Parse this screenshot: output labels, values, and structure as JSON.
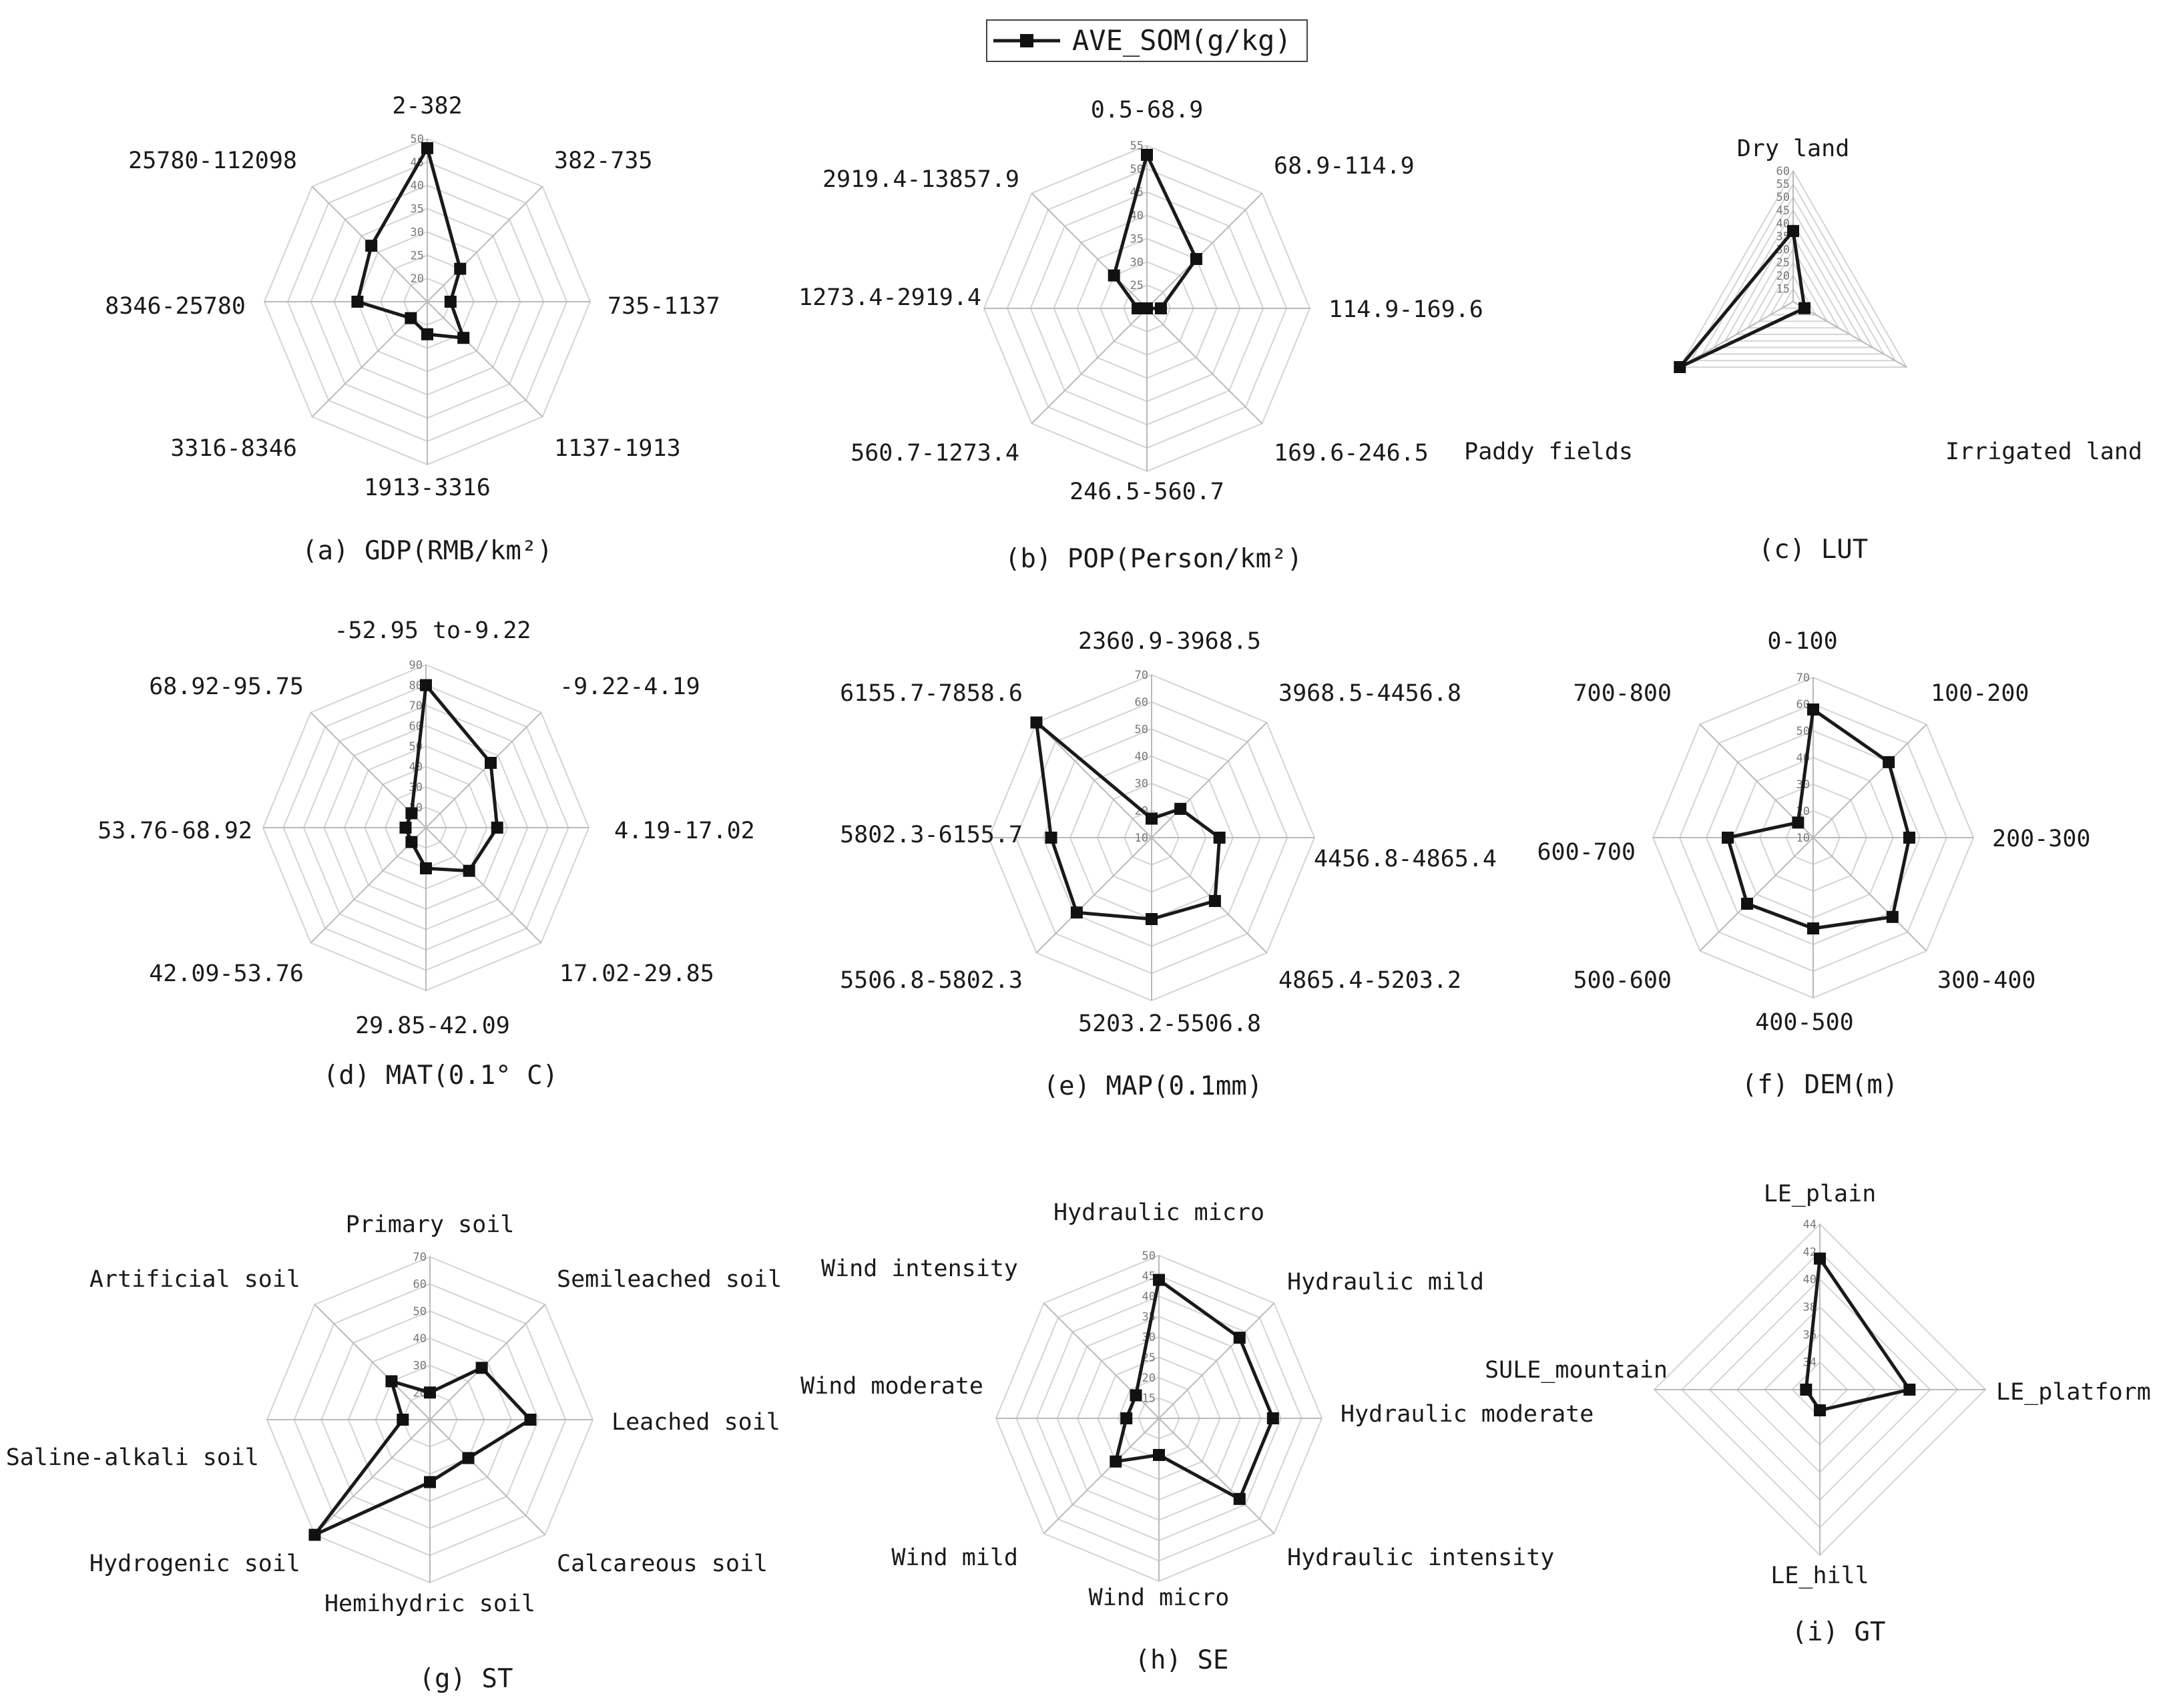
{
  "legend": {
    "label": "AVE_SOM(g/kg)",
    "marker": "black-square-line"
  },
  "colors": {
    "series": "#1a1a1a",
    "grid": "#d4d4d4",
    "spoke": "#b9b9b9"
  },
  "chart_data": [
    {
      "type": "radar",
      "caption": "(a)  GDP(RMB/km²)",
      "categories": [
        "2-382",
        "382-735",
        "735-1137",
        "1137-1913",
        "1913-3316",
        "3316-8346",
        "8346-25780",
        "25780-112098"
      ],
      "values": [
        48,
        25,
        20,
        26,
        22,
        20,
        30,
        32
      ],
      "ticks": [
        20,
        25,
        30,
        35,
        40,
        45,
        50
      ],
      "rlim": [
        15,
        50
      ]
    },
    {
      "type": "radar",
      "caption": "(b)  POP(Person/km²)",
      "categories": [
        "0.5-68.9",
        "68.9-114.9",
        "114.9-169.6",
        "169.6-246.5",
        "246.5-560.7",
        "560.7-1273.4",
        "1273.4-2919.4",
        "2919.4-13857.9"
      ],
      "values": [
        53,
        35,
        23,
        20,
        20,
        20,
        22,
        30
      ],
      "ticks": [
        25,
        30,
        35,
        40,
        45,
        50,
        55
      ],
      "rlim": [
        20,
        55
      ]
    },
    {
      "type": "radar",
      "caption": "(c)  LUT",
      "categories": [
        "Dry land",
        "Irrigated land",
        "Paddy fields"
      ],
      "values": [
        37,
        15,
        60
      ],
      "ticks": [
        15,
        20,
        25,
        30,
        35,
        40,
        45,
        50,
        55,
        60
      ],
      "rlim": [
        10,
        60
      ]
    },
    {
      "type": "radar",
      "caption": "(d)  MAT(0.1° C)",
      "categories": [
        "-52.95 to-9.22",
        "-9.22-4.19",
        "4.19-17.02",
        "17.02-29.85",
        "29.85-42.09",
        "42.09-53.76",
        "53.76-68.92",
        "68.92-95.75"
      ],
      "values": [
        80,
        55,
        45,
        40,
        30,
        20,
        20,
        20
      ],
      "ticks": [
        20,
        30,
        40,
        50,
        60,
        70,
        80,
        90
      ],
      "rlim": [
        10,
        90
      ]
    },
    {
      "type": "radar",
      "caption": "(e)  MAP(0.1mm)",
      "categories": [
        "2360.9-3968.5",
        "3968.5-4456.8",
        "4456.8-4865.4",
        "4865.4-5203.2",
        "5203.2-5506.8",
        "5506.8-5802.3",
        "5802.3-6155.7",
        "6155.7-7858.6"
      ],
      "values": [
        17,
        25,
        35,
        43,
        40,
        49,
        47,
        70
      ],
      "ticks": [
        10,
        20,
        30,
        40,
        50,
        60,
        70
      ],
      "rlim": [
        10,
        70
      ]
    },
    {
      "type": "radar",
      "caption": "(f)  DEM(m)",
      "categories": [
        "0-100",
        "100-200",
        "200-300",
        "300-400",
        "400-500",
        "500-600",
        "600-700",
        "700-800"
      ],
      "values": [
        58,
        50,
        46,
        52,
        44,
        45,
        42,
        18
      ],
      "ticks": [
        10,
        20,
        30,
        40,
        50,
        60,
        70
      ],
      "rlim": [
        10,
        70
      ]
    },
    {
      "type": "radar",
      "caption": "(g)  ST",
      "categories": [
        "Primary soil",
        "Semileached soil",
        "Leached soil",
        "Calcareous soil",
        "Hemihydric soil",
        "Hydrogenic soil",
        "Saline-alkali soil",
        "Artificial soil"
      ],
      "values": [
        20,
        37,
        47,
        30,
        33,
        70,
        20,
        30
      ],
      "ticks": [
        20,
        30,
        40,
        50,
        60,
        70
      ],
      "rlim": [
        10,
        70
      ]
    },
    {
      "type": "radar",
      "caption": "(h)  SE",
      "categories": [
        "Hydraulic micro",
        "Hydraulic mild",
        "Hydraulic moderate",
        "Hydraulic intensity",
        "Wind micro",
        "Wind mild",
        "Wind moderate",
        "Wind intensity"
      ],
      "values": [
        44,
        38,
        38,
        38,
        19,
        25,
        18,
        18
      ],
      "ticks": [
        15,
        20,
        25,
        30,
        35,
        40,
        45,
        50
      ],
      "rlim": [
        10,
        50
      ]
    },
    {
      "type": "radar",
      "caption": "(i)  GT",
      "categories": [
        "LE_plain",
        "LE_platform",
        "LE_hill",
        "SULE_mountain"
      ],
      "values": [
        41.5,
        38.5,
        33.5,
        33
      ],
      "ticks": [
        34,
        36,
        38,
        40,
        42,
        44
      ],
      "rlim": [
        32,
        44
      ]
    }
  ]
}
